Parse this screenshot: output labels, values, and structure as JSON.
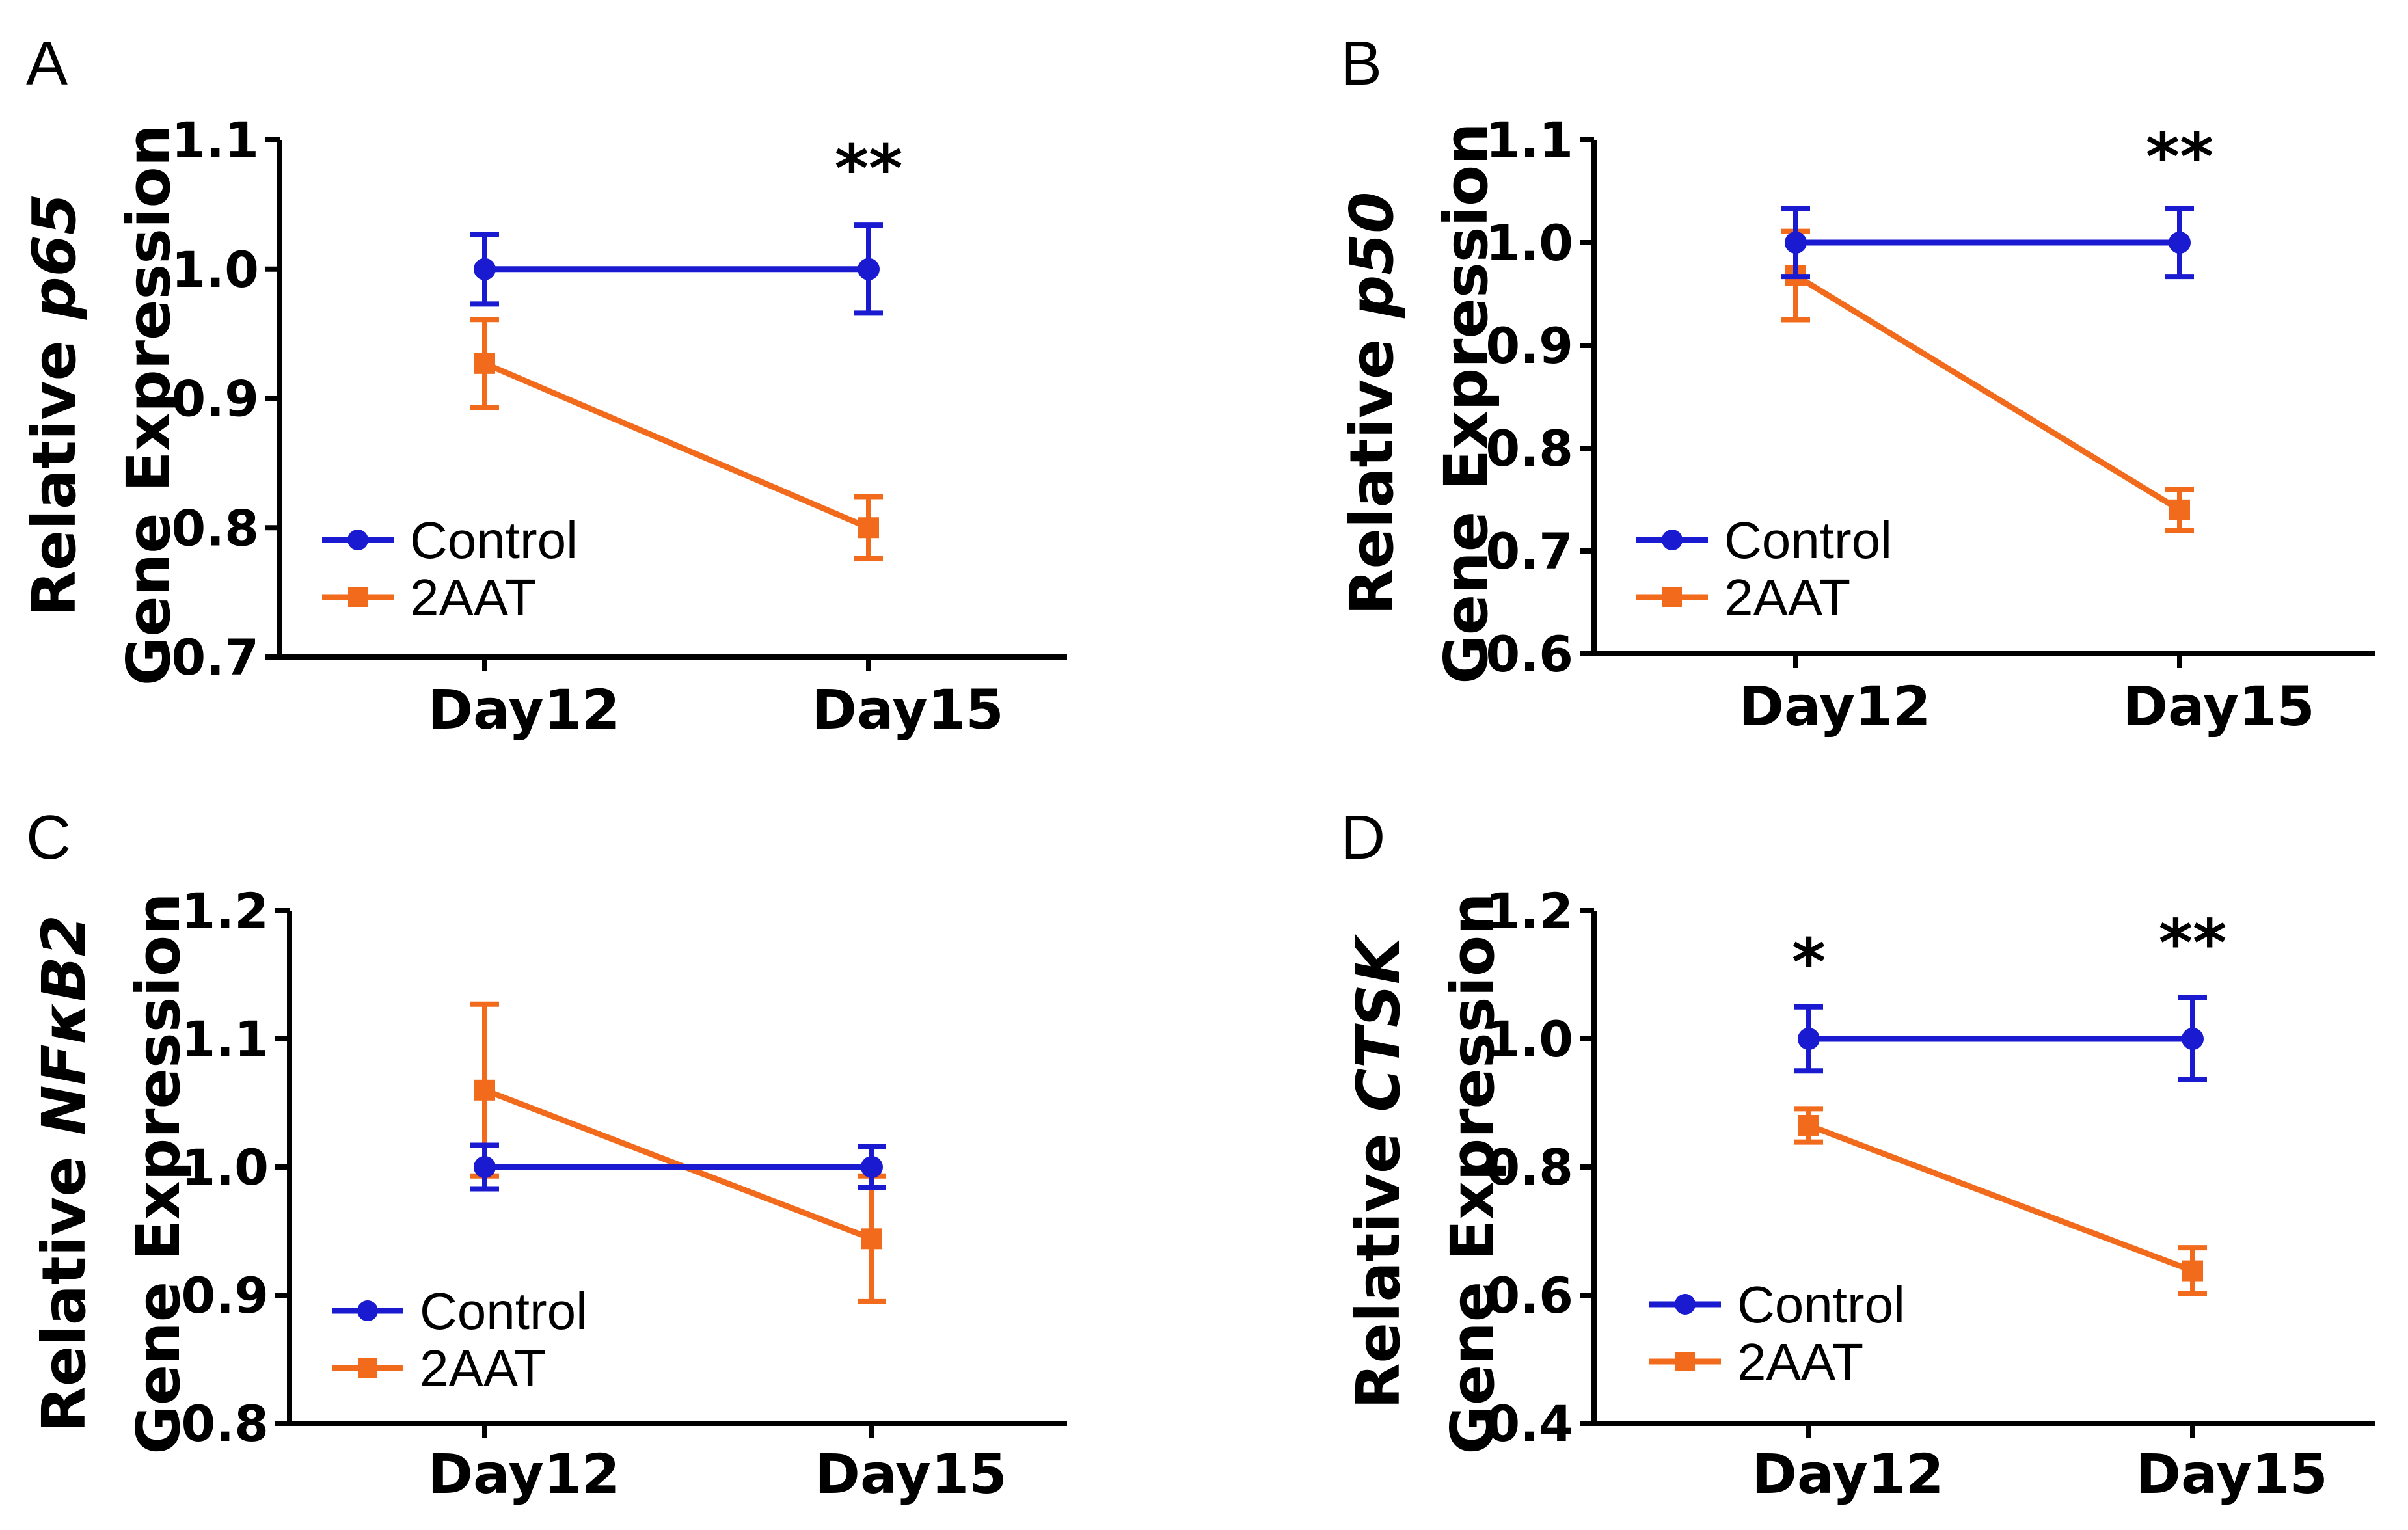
{
  "colors": {
    "control": "#1a1ad0",
    "treatment": "#f26b1d",
    "axis": "#000000"
  },
  "chart_data": [
    {
      "type": "line",
      "panel": "A",
      "ylabel_prefix": "Relative ",
      "ylabel_gene": "p65",
      "ylabel_line2": "Gene Expression",
      "categories": [
        "Day12",
        "Day15"
      ],
      "ylim": [
        0.7,
        1.1
      ],
      "yticks": [
        "0.7",
        "0.8",
        "0.9",
        "1.0",
        "1.1"
      ],
      "series": [
        {
          "name": "Control",
          "values": [
            1.0,
            1.0
          ],
          "errors": [
            0.027,
            0.034
          ]
        },
        {
          "name": "2AAT",
          "values": [
            0.927,
            0.8
          ],
          "errors": [
            0.034,
            0.024
          ]
        }
      ],
      "annotations": [
        {
          "category_index": 1,
          "text": "**",
          "y": 1.083
        }
      ],
      "legend": "bottom-left"
    },
    {
      "type": "line",
      "panel": "B",
      "ylabel_prefix": "Relative ",
      "ylabel_gene": "p50",
      "ylabel_line2": "Gene Expression",
      "categories": [
        "Day12",
        "Day15"
      ],
      "ylim": [
        0.6,
        1.1
      ],
      "yticks": [
        "0.6",
        "0.7",
        "0.8",
        "0.9",
        "1.0",
        "1.1"
      ],
      "series": [
        {
          "name": "Control",
          "values": [
            1.0,
            1.0
          ],
          "errors": [
            0.033,
            0.033
          ]
        },
        {
          "name": "2AAT",
          "values": [
            0.968,
            0.74
          ],
          "errors": [
            0.043,
            0.02
          ]
        }
      ],
      "annotations": [
        {
          "category_index": 1,
          "text": "**",
          "y": 1.09
        }
      ],
      "legend": "bottom-left"
    },
    {
      "type": "line",
      "panel": "C",
      "ylabel_prefix": "Relative ",
      "ylabel_gene": "NFκB2",
      "ylabel_line2": "Gene Expression",
      "categories": [
        "Day12",
        "Day15"
      ],
      "ylim": [
        0.8,
        1.2
      ],
      "yticks": [
        "0.8",
        "0.9",
        "1.0",
        "1.1",
        "1.2"
      ],
      "series": [
        {
          "name": "Control",
          "values": [
            1.0,
            1.0
          ],
          "errors": [
            0.017,
            0.016
          ]
        },
        {
          "name": "2AAT",
          "values": [
            1.06,
            0.944
          ],
          "errors": [
            0.067,
            0.049
          ]
        }
      ],
      "annotations": [],
      "legend": "bottom-left"
    },
    {
      "type": "line",
      "panel": "D",
      "ylabel_prefix": "Relative ",
      "ylabel_gene": "CTSK",
      "ylabel_line2": "Gene Expression",
      "categories": [
        "Day12",
        "Day15"
      ],
      "ylim": [
        0.4,
        1.2
      ],
      "yticks": [
        "0.4",
        "0.6",
        "0.8",
        "1.0",
        "1.2"
      ],
      "series": [
        {
          "name": "Control",
          "values": [
            1.0,
            1.0
          ],
          "errors": [
            0.05,
            0.064
          ]
        },
        {
          "name": "2AAT",
          "values": [
            0.865,
            0.638
          ],
          "errors": [
            0.026,
            0.036
          ]
        }
      ],
      "annotations": [
        {
          "category_index": 0,
          "text": "*",
          "y": 1.13
        },
        {
          "category_index": 1,
          "text": "**",
          "y": 1.16
        }
      ],
      "legend": "bottom-left"
    }
  ]
}
